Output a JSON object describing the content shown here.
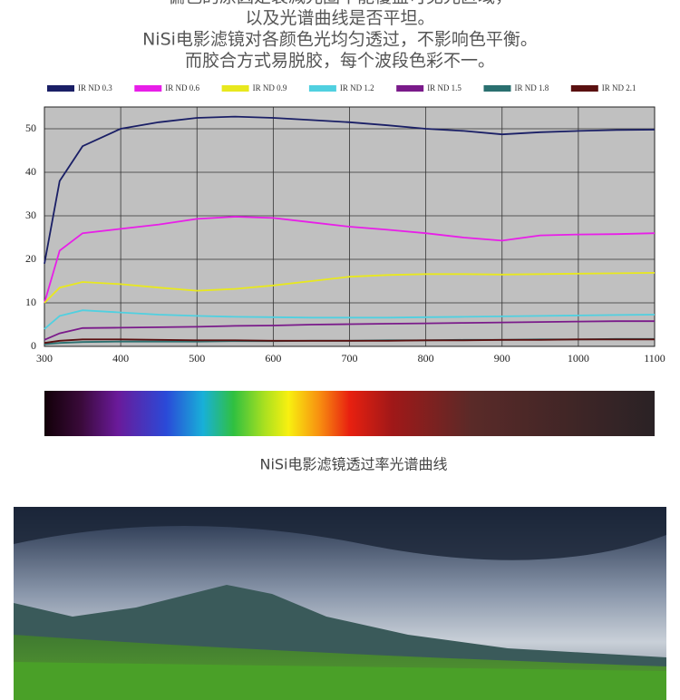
{
  "intro_lines": [
    "偏色的原因是衰减光圈不能覆盖可见光区域，",
    "以及光谱曲线是否平坦。",
    "NiSi电影滤镜对各颜色光均匀透过，不影响色平衡。",
    "而胶合方式易脱胶，每个波段色彩不一。"
  ],
  "chart_data": {
    "type": "line",
    "x": [
      300,
      320,
      350,
      400,
      450,
      500,
      550,
      600,
      650,
      700,
      750,
      800,
      850,
      900,
      950,
      1000,
      1050,
      1100
    ],
    "series": [
      {
        "name": "IR ND 0.3",
        "color": "#1a1f66",
        "values": [
          19,
          38,
          46,
          50,
          51.5,
          52.5,
          52.8,
          52.5,
          52,
          51.5,
          50.8,
          50,
          49.5,
          48.7,
          49.2,
          49.5,
          49.7,
          49.8
        ]
      },
      {
        "name": "IR ND 0.6",
        "color": "#e81ee8",
        "values": [
          10,
          22,
          26,
          27,
          28,
          29.3,
          29.8,
          29.5,
          28.5,
          27.5,
          26.8,
          26,
          25,
          24.3,
          25.5,
          25.7,
          25.8,
          26
        ]
      },
      {
        "name": "IR ND 0.9",
        "color": "#e8e81e",
        "values": [
          10,
          13.5,
          14.8,
          14.3,
          13.5,
          12.8,
          13.2,
          14,
          15,
          16,
          16.4,
          16.6,
          16.6,
          16.5,
          16.6,
          16.7,
          16.8,
          16.9
        ]
      },
      {
        "name": "IR ND 1.2",
        "color": "#50d0e0",
        "values": [
          4,
          7,
          8.3,
          7.8,
          7.3,
          7,
          6.8,
          6.7,
          6.6,
          6.6,
          6.6,
          6.7,
          6.8,
          6.9,
          7,
          7.1,
          7.2,
          7.3
        ]
      },
      {
        "name": "IR ND 1.5",
        "color": "#7a1a8a",
        "values": [
          1.5,
          3,
          4.2,
          4.3,
          4.4,
          4.5,
          4.7,
          4.8,
          5,
          5.1,
          5.2,
          5.3,
          5.4,
          5.5,
          5.6,
          5.7,
          5.8,
          5.8
        ]
      },
      {
        "name": "IR ND 1.8",
        "color": "#2a7070",
        "values": [
          0.5,
          0.8,
          1,
          1.1,
          1.1,
          1.1,
          1.2,
          1.2,
          1.3,
          1.3,
          1.4,
          1.4,
          1.5,
          1.5,
          1.6,
          1.6,
          1.7,
          1.7
        ]
      },
      {
        "name": "IR ND 2.1",
        "color": "#5a1010",
        "values": [
          0.8,
          1.3,
          1.6,
          1.6,
          1.5,
          1.4,
          1.4,
          1.3,
          1.3,
          1.3,
          1.3,
          1.4,
          1.4,
          1.5,
          1.5,
          1.6,
          1.6,
          1.6
        ]
      }
    ],
    "xlim": [
      300,
      1100
    ],
    "xticks": [
      300,
      400,
      500,
      600,
      700,
      800,
      900,
      1000,
      1100
    ],
    "ylim": [
      0,
      55
    ],
    "yticks": [
      0,
      10,
      20,
      30,
      40,
      50
    ],
    "grid": true,
    "legend": "top"
  },
  "caption": "NiSi电影滤镜透过率光谱曲线"
}
